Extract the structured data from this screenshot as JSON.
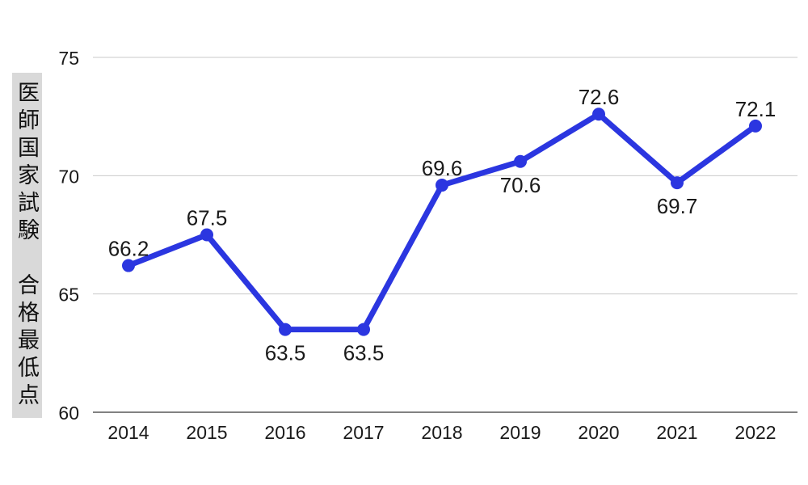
{
  "y_axis_title": "医師国家試験　合格最低点",
  "colors": {
    "line": "#2b36e0",
    "point": "#2b36e0",
    "grid": "#c9c9c9",
    "axis": "#595959",
    "text": "#1a1a1a",
    "y_title_bg": "#d9d9d9"
  },
  "chart_data": {
    "type": "line",
    "title": "",
    "ylabel": "医師国家試験　合格最低点",
    "xlabel": "",
    "categories": [
      "2014",
      "2015",
      "2016",
      "2017",
      "2018",
      "2019",
      "2020",
      "2021",
      "2022"
    ],
    "values": [
      66.2,
      67.5,
      63.5,
      63.5,
      69.6,
      70.6,
      72.6,
      69.7,
      72.1
    ],
    "data_labels": [
      "66.2",
      "67.5",
      "63.5",
      "63.5",
      "69.6",
      "70.6",
      "72.6",
      "69.7",
      "72.1"
    ],
    "label_positions": [
      "above",
      "above",
      "below",
      "below",
      "above",
      "below",
      "above",
      "below",
      "above"
    ],
    "ylim": [
      60,
      75
    ],
    "yticks": [
      60,
      65,
      70,
      75
    ],
    "ytick_labels": [
      "60",
      "65",
      "70",
      "75"
    ],
    "grid": "horizontal",
    "legend": "none",
    "marker": "circle"
  }
}
